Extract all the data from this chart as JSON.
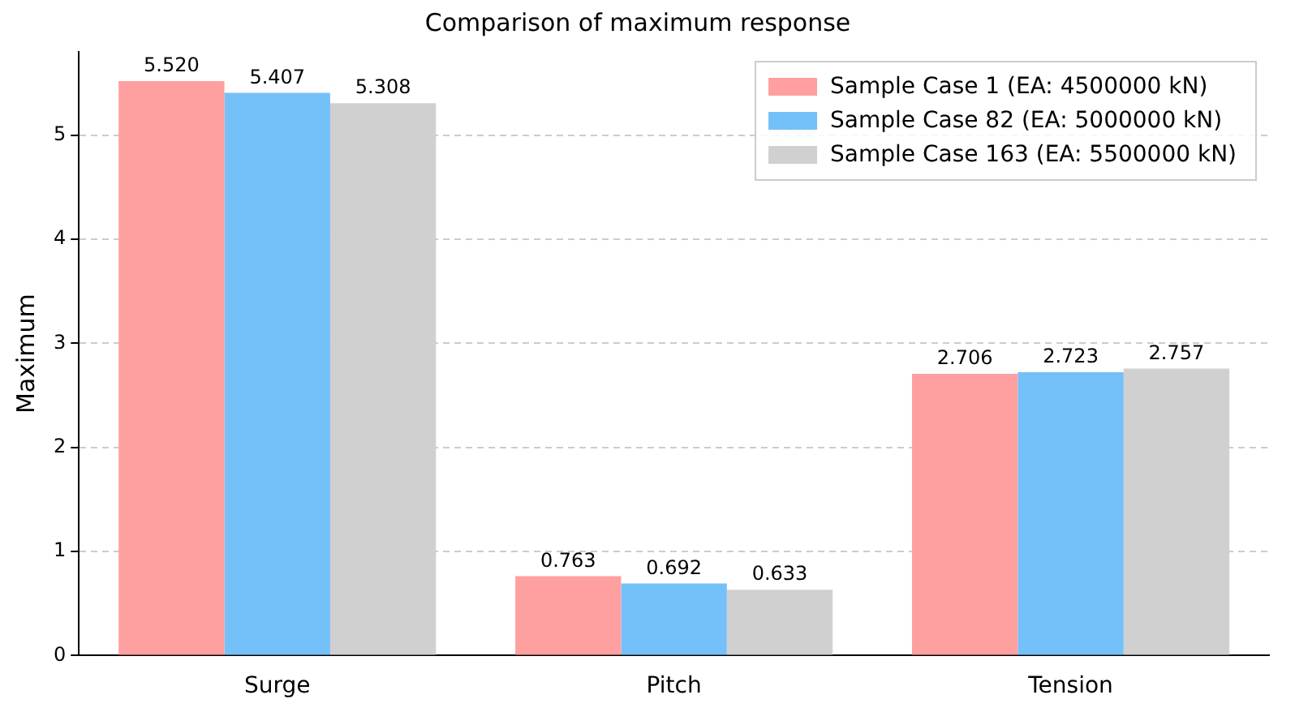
{
  "chart_data": {
    "type": "bar",
    "title": "Comparison of maximum response",
    "ylabel": "Maximum",
    "categories": [
      "Surge",
      "Pitch",
      "Tension"
    ],
    "series": [
      {
        "name": "Sample Case 1 (EA: 4500000 kN)",
        "color": "#ffa0a0",
        "values": [
          5.52,
          0.763,
          2.706
        ],
        "value_labels": [
          "5.520",
          "0.763",
          "2.706"
        ]
      },
      {
        "name": "Sample Case 82 (EA: 5000000 kN)",
        "color": "#74c0f8",
        "values": [
          5.407,
          0.692,
          2.723
        ],
        "value_labels": [
          "5.407",
          "0.692",
          "2.723"
        ]
      },
      {
        "name": "Sample Case 163 (EA: 5500000 kN)",
        "color": "#d0d0d0",
        "values": [
          5.308,
          0.633,
          2.757
        ],
        "value_labels": [
          "5.308",
          "0.633",
          "2.757"
        ]
      }
    ],
    "ylim": [
      0,
      5.8
    ],
    "yticks": [
      0,
      1,
      2,
      3,
      4,
      5
    ],
    "grid": "y",
    "legend": "top right"
  }
}
